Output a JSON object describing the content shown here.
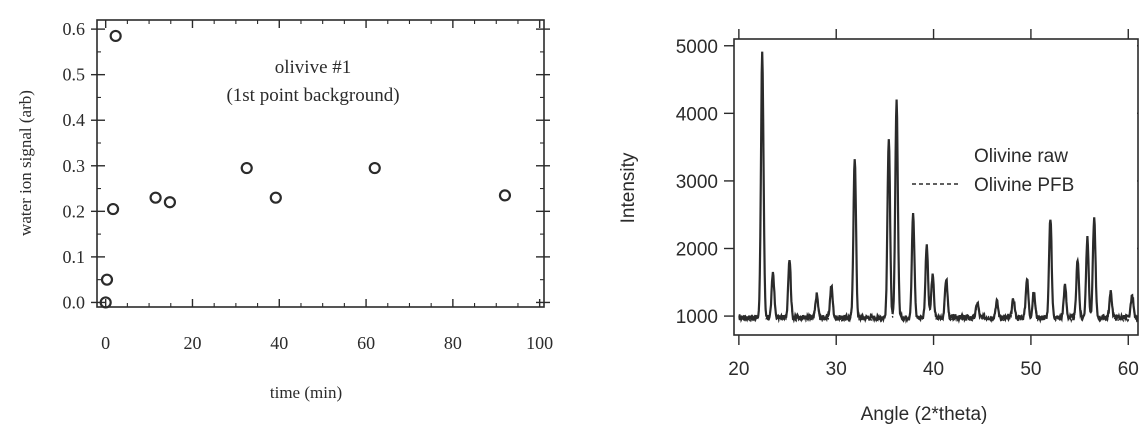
{
  "colors": {
    "ink": "#2b2b2b",
    "background": "#ffffff"
  },
  "chart_data": [
    {
      "type": "scatter",
      "title": "olivive #1",
      "subtitle": "(1st point background)",
      "xlabel": "time (min)",
      "ylabel": "water ion signal (arb)",
      "xlim": [
        -2,
        101
      ],
      "ylim": [
        -0.01,
        0.62
      ],
      "xticks": [
        0,
        20,
        40,
        60,
        80,
        100
      ],
      "xtick_labels": [
        "0",
        "20",
        "40",
        "60",
        "80",
        "100"
      ],
      "yticks": [
        0.0,
        0.1,
        0.2,
        0.3,
        0.4,
        0.5,
        0.6
      ],
      "ytick_labels": [
        "0.0",
        "0.1",
        "0.2",
        "0.3",
        "0.4",
        "0.5",
        "0.6"
      ],
      "grid": false,
      "marker": "open-circle",
      "series": [
        {
          "x": [
            0,
            0.3,
            1.7,
            2.3,
            11.5,
            14.8,
            32.5,
            39.2,
            62,
            92
          ],
          "y": [
            0.0,
            0.05,
            0.205,
            0.585,
            0.23,
            0.22,
            0.295,
            0.23,
            0.295,
            0.235
          ]
        }
      ]
    },
    {
      "type": "line",
      "xlabel": "Angle (2*theta)",
      "ylabel": "Intensity",
      "xlim": [
        19.5,
        61
      ],
      "ylim": [
        720,
        5100
      ],
      "xticks": [
        20,
        30,
        40,
        50,
        60
      ],
      "xtick_labels": [
        "20",
        "30",
        "40",
        "50",
        "60"
      ],
      "yticks": [
        1000,
        2000,
        3000,
        4000,
        5000
      ],
      "ytick_labels": [
        "1000",
        "2000",
        "3000",
        "4000",
        "5000"
      ],
      "grid": false,
      "legend_position": "right",
      "series": [
        {
          "name": "Olivine raw",
          "style": "solid",
          "peaks": [
            [
              22.4,
              4900
            ],
            [
              23.5,
              1650
            ],
            [
              25.2,
              1850
            ],
            [
              28.0,
              1320
            ],
            [
              29.5,
              1450
            ],
            [
              31.9,
              3350
            ],
            [
              35.4,
              3650
            ],
            [
              36.2,
              4200
            ],
            [
              37.9,
              2500
            ],
            [
              39.3,
              2050
            ],
            [
              39.9,
              1600
            ],
            [
              41.3,
              1550
            ],
            [
              44.5,
              1200
            ],
            [
              46.5,
              1220
            ],
            [
              48.2,
              1250
            ],
            [
              49.6,
              1550
            ],
            [
              50.3,
              1350
            ],
            [
              52.0,
              2450
            ],
            [
              53.5,
              1450
            ],
            [
              54.8,
              1850
            ],
            [
              55.8,
              2150
            ],
            [
              56.5,
              2450
            ],
            [
              58.2,
              1350
            ],
            [
              60.4,
              1300
            ]
          ],
          "baseline": 980
        },
        {
          "name": "Olivine PFB",
          "style": "dashed",
          "peaks": [
            [
              22.4,
              4750
            ],
            [
              23.5,
              1600
            ],
            [
              25.2,
              1800
            ],
            [
              28.0,
              1280
            ],
            [
              29.5,
              1400
            ],
            [
              31.9,
              3250
            ],
            [
              35.4,
              3550
            ],
            [
              36.2,
              4100
            ],
            [
              37.9,
              2450
            ],
            [
              39.3,
              2000
            ],
            [
              39.9,
              1550
            ],
            [
              41.3,
              1500
            ],
            [
              44.5,
              1180
            ],
            [
              46.5,
              1190
            ],
            [
              48.2,
              1220
            ],
            [
              49.6,
              1500
            ],
            [
              50.3,
              1320
            ],
            [
              52.0,
              2400
            ],
            [
              53.5,
              1400
            ],
            [
              54.8,
              1800
            ],
            [
              55.8,
              2100
            ],
            [
              56.5,
              2400
            ],
            [
              58.2,
              1320
            ],
            [
              60.4,
              1270
            ]
          ],
          "baseline": 960
        }
      ]
    }
  ]
}
